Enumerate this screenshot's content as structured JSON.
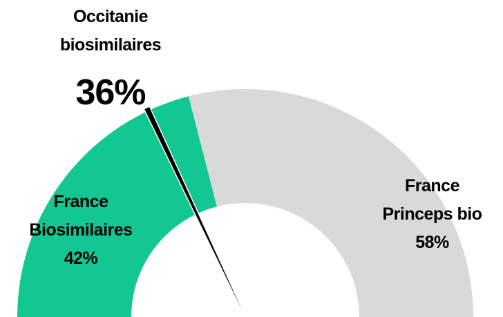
{
  "chart_data": {
    "type": "gauge",
    "series": [
      {
        "name": "France Biosimilaires",
        "color": "#13c793",
        "values": [
          42
        ],
        "value_labels": [
          "42%"
        ]
      },
      {
        "name": "France Princeps bio",
        "color": "#d9d9d9",
        "values": [
          58
        ],
        "value_labels": [
          "58%"
        ]
      }
    ],
    "needle": {
      "name": "Occitanie biosimilaires",
      "value": 36,
      "value_label": "36%",
      "color": "#000000"
    }
  }
}
